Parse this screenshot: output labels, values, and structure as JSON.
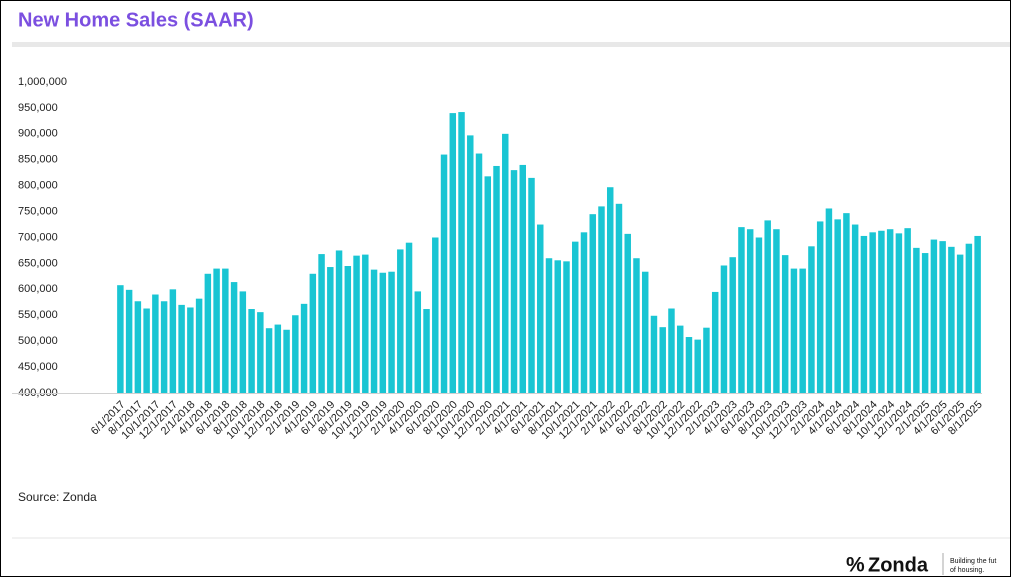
{
  "chart_data": {
    "type": "bar",
    "title": "New Home Sales (SAAR)",
    "source": "Source: Zonda",
    "brand": "Zonda",
    "tagline": [
      "Building the fut",
      "of housing."
    ],
    "color": "#19c5d3",
    "grid": false,
    "ylim": [
      400000,
      1000000
    ],
    "yticks": [
      {
        "value": 400000,
        "label": "400,000"
      },
      {
        "value": 450000,
        "label": "450,000"
      },
      {
        "value": 500000,
        "label": "500,000"
      },
      {
        "value": 550000,
        "label": "550,000"
      },
      {
        "value": 600000,
        "label": "600,000"
      },
      {
        "value": 650000,
        "label": "650,000"
      },
      {
        "value": 700000,
        "label": "700,000"
      },
      {
        "value": 750000,
        "label": "750,000"
      },
      {
        "value": 800000,
        "label": "800,000"
      },
      {
        "value": 850000,
        "label": "850,000"
      },
      {
        "value": 900000,
        "label": "900,000"
      },
      {
        "value": 950000,
        "label": "950,000"
      },
      {
        "value": 1000000,
        "label": "1,000,000"
      }
    ],
    "categories": [
      "6/1/2017",
      null,
      "8/1/2017",
      null,
      "10/1/2017",
      null,
      "12/1/2017",
      null,
      "2/1/2018",
      null,
      "4/1/2018",
      null,
      "6/1/2018",
      null,
      "8/1/2018",
      null,
      "10/1/2018",
      null,
      "12/1/2018",
      null,
      "2/1/2019",
      null,
      "4/1/2019",
      null,
      "6/1/2019",
      null,
      "8/1/2019",
      null,
      "10/1/2019",
      null,
      "12/1/2019",
      null,
      "2/1/2020",
      null,
      "4/1/2020",
      null,
      "6/1/2020",
      null,
      "8/1/2020",
      null,
      "10/1/2020",
      null,
      "12/1/2020",
      null,
      "2/1/2021",
      null,
      "4/1/2021",
      null,
      "6/1/2021",
      null,
      "8/1/2021",
      null,
      "10/1/2021",
      null,
      "12/1/2021",
      null,
      "2/1/2022",
      null,
      "4/1/2022",
      null,
      "6/1/2022",
      null,
      "8/1/2022",
      null,
      "10/1/2022",
      null,
      "12/1/2022",
      null,
      "2/1/2023",
      null,
      "4/1/2023",
      null,
      "6/1/2023",
      null,
      "8/1/2023",
      null,
      "10/1/2023",
      null,
      "12/1/2023",
      null,
      "2/1/2024",
      null,
      "4/1/2024",
      null,
      "6/1/2024",
      null,
      "8/1/2024",
      null,
      "10/1/2024",
      null,
      "12/1/2024",
      null,
      "2/1/2025",
      null,
      "4/1/2025",
      null,
      "6/1/2025",
      null,
      "8/1/2025"
    ],
    "values": [
      608000,
      599000,
      577000,
      563000,
      590000,
      577000,
      600000,
      570000,
      565000,
      582000,
      630000,
      640000,
      640000,
      614000,
      596000,
      562000,
      556000,
      525000,
      532000,
      522000,
      550000,
      572000,
      630000,
      668000,
      643000,
      675000,
      645000,
      665000,
      667000,
      638000,
      632000,
      634000,
      677000,
      690000,
      596000,
      562000,
      700000,
      860000,
      940000,
      942000,
      897000,
      862000,
      818000,
      838000,
      900000,
      830000,
      840000,
      815000,
      725000,
      660000,
      656000,
      654000,
      692000,
      710000,
      745000,
      760000,
      797000,
      765000,
      707000,
      660000,
      634000,
      549000,
      527000,
      563000,
      530000,
      508000,
      503000,
      526000,
      595000,
      646000,
      662000,
      720000,
      716000,
      700000,
      733000,
      716000,
      666000,
      640000,
      640000,
      683000,
      731000,
      756000,
      735000,
      747000,
      725000,
      703000,
      710000,
      713000,
      716000,
      708000,
      718000,
      680000,
      670000,
      696000,
      693000,
      682000,
      667000,
      688000,
      703000
    ]
  }
}
